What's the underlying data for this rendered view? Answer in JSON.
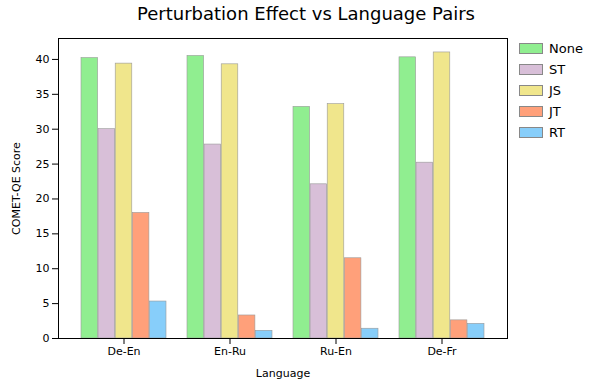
{
  "chart_data": {
    "type": "bar",
    "title": "Perturbation Effect vs Language Pairs",
    "x_label": "Language",
    "y_label": "COMET-QE Score",
    "categories": [
      "De-En",
      "En-Ru",
      "Ru-En",
      "De-Fr"
    ],
    "series": [
      {
        "name": "None",
        "color": "#90ee90",
        "values": [
          40.2,
          40.5,
          33.2,
          40.3
        ]
      },
      {
        "name": "ST",
        "color": "#d8bfd8",
        "values": [
          30.0,
          27.8,
          22.1,
          25.2
        ]
      },
      {
        "name": "JS",
        "color": "#f0e68c",
        "values": [
          39.4,
          39.3,
          33.6,
          41.0
        ]
      },
      {
        "name": "JT",
        "color": "#ffa07a",
        "values": [
          18.0,
          3.3,
          11.5,
          2.6
        ]
      },
      {
        "name": "RT",
        "color": "#87cefa",
        "values": [
          5.3,
          1.1,
          1.4,
          2.1
        ]
      }
    ],
    "ylim": [
      0,
      43
    ],
    "yticks": [
      0,
      5,
      10,
      15,
      20,
      25,
      30,
      35,
      40
    ],
    "grid": false,
    "legend": "upper right"
  }
}
